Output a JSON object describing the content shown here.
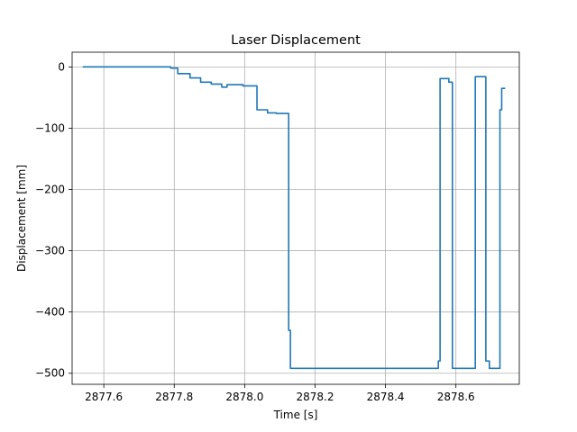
{
  "chart_data": {
    "type": "line",
    "title": "Laser Displacement",
    "xlabel": "Time [s]",
    "ylabel": "Displacement [mm]",
    "xlim": [
      2877.51,
      2878.78
    ],
    "ylim": [
      -518,
      24
    ],
    "x_ticks": [
      2877.6,
      2877.8,
      2878.0,
      2878.2,
      2878.4,
      2878.6
    ],
    "x_tick_labels": [
      "2877.6",
      "2877.8",
      "2878.0",
      "2878.2",
      "2878.4",
      "2878.6"
    ],
    "y_ticks": [
      0,
      -100,
      -200,
      -300,
      -400,
      -500
    ],
    "y_tick_labels": [
      "0",
      "−100",
      "−200",
      "−300",
      "−400",
      "−500"
    ],
    "grid": true,
    "color": "#1f77b4",
    "series": [
      {
        "x": [
          2877.54,
          2877.79,
          2877.79,
          2877.81,
          2877.81,
          2877.845,
          2877.845,
          2877.875,
          2877.875,
          2877.905,
          2877.905,
          2877.935,
          2877.935,
          2877.95,
          2877.95,
          2877.995,
          2877.995,
          2878.015,
          2878.015,
          2878.035,
          2878.035,
          2878.065,
          2878.065,
          2878.09,
          2878.09,
          2878.125,
          2878.125,
          2878.13,
          2878.13,
          2878.55,
          2878.55,
          2878.555,
          2878.555,
          2878.58,
          2878.58,
          2878.59,
          2878.59,
          2878.655,
          2878.655,
          2878.66,
          2878.66,
          2878.685,
          2878.685,
          2878.695,
          2878.695,
          2878.725,
          2878.725,
          2878.73,
          2878.73,
          2878.74
        ],
        "y": [
          0,
          0,
          -2,
          -2,
          -11,
          -11,
          -18,
          -18,
          -25,
          -25,
          -28,
          -28,
          -33,
          -33,
          -29,
          -29,
          -31,
          -31,
          -31,
          -31,
          -70,
          -70,
          -75,
          -75,
          -76,
          -76,
          -430,
          -430,
          -492,
          -492,
          -480,
          -480,
          -19,
          -19,
          -25,
          -25,
          -492,
          -492,
          -16,
          -16,
          -16,
          -16,
          -480,
          -480,
          -492,
          -492,
          -70,
          -70,
          -35,
          -35
        ]
      }
    ]
  }
}
